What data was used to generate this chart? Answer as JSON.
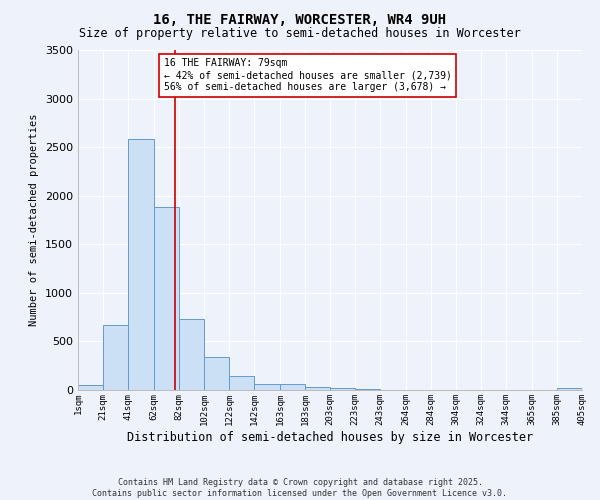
{
  "title": "16, THE FAIRWAY, WORCESTER, WR4 9UH",
  "subtitle": "Size of property relative to semi-detached houses in Worcester",
  "xlabel": "Distribution of semi-detached houses by size in Worcester",
  "ylabel": "Number of semi-detached properties",
  "bar_color": "#cce0f5",
  "bar_edge_color": "#6699cc",
  "background_color": "#eef2fb",
  "grid_color": "#ffffff",
  "ref_line_x": 79,
  "ref_line_color": "#cc0000",
  "annotation_text": "16 THE FAIRWAY: 79sqm\n← 42% of semi-detached houses are smaller (2,739)\n56% of semi-detached houses are larger (3,678) →",
  "annotation_box_color": "#ffffff",
  "annotation_box_edge": "#cc0000",
  "bin_edges": [
    1,
    21,
    41,
    62,
    82,
    102,
    122,
    142,
    163,
    183,
    203,
    223,
    243,
    264,
    284,
    304,
    324,
    344,
    365,
    385,
    405
  ],
  "bin_values": [
    50,
    670,
    2580,
    1880,
    730,
    340,
    145,
    60,
    65,
    35,
    20,
    10,
    5,
    2,
    2,
    1,
    0,
    0,
    0,
    25
  ],
  "ylim": [
    0,
    3500
  ],
  "copyright_text": "Contains HM Land Registry data © Crown copyright and database right 2025.\nContains public sector information licensed under the Open Government Licence v3.0.",
  "tick_labels": [
    "1sqm",
    "21sqm",
    "41sqm",
    "62sqm",
    "82sqm",
    "102sqm",
    "122sqm",
    "142sqm",
    "163sqm",
    "183sqm",
    "203sqm",
    "223sqm",
    "243sqm",
    "264sqm",
    "284sqm",
    "304sqm",
    "324sqm",
    "344sqm",
    "365sqm",
    "385sqm",
    "405sqm"
  ]
}
